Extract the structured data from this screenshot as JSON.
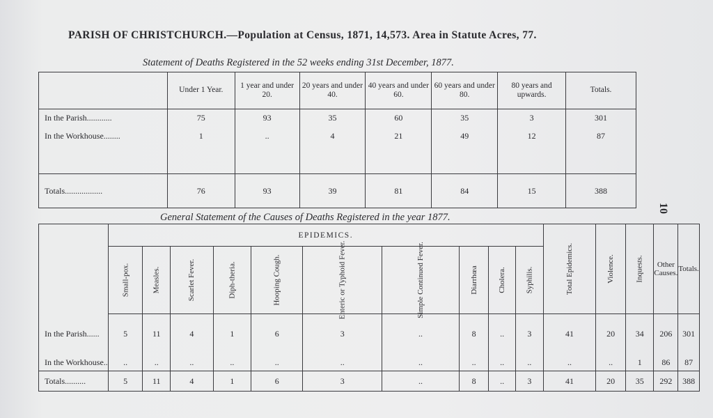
{
  "title": "PARISH OF CHRISTCHURCH.—Population at Census, 1871, 14,573. Area in Statute Acres, 77.",
  "page_number": "10",
  "deaths_table": {
    "caption": "Statement of Deaths Registered in the 52 weeks ending 31st December, 1877.",
    "columns": [
      "Under 1 Year.",
      "1 year and under 20.",
      "20 years and under 40.",
      "40 years and under 60.",
      "60 years and under 80.",
      "80 years and upwards.",
      "Totals."
    ],
    "rows": [
      {
        "label": "In the Parish............",
        "values": [
          "75",
          "93",
          "35",
          "60",
          "35",
          "3",
          "301"
        ]
      },
      {
        "label": "In the Workhouse........",
        "values": [
          "1",
          "..",
          "4",
          "21",
          "49",
          "12",
          "87"
        ]
      },
      {
        "label": "Totals..................",
        "values": [
          "76",
          "93",
          "39",
          "81",
          "84",
          "15",
          "388"
        ]
      }
    ]
  },
  "causes_table": {
    "caption": "General Statement of the Causes of Deaths Registered in the year 1877.",
    "group_header": "EPIDEMICS.",
    "epidemic_columns": [
      "Small-pox.",
      "Measles.",
      "Scarlet Fever.",
      "Diph-theria.",
      "Hooping Cough.",
      "Enteric or Typhoid Fever.",
      "Simple Continued Fever.",
      "Diarrhœa",
      "Cholera.",
      "Syphilis."
    ],
    "other_columns": [
      "Total Epidemics.",
      "Violence.",
      "Inquests."
    ],
    "other_causes": "Other Causes.",
    "totals": "Totals.",
    "rows": [
      {
        "label": "In the Parish......",
        "values": [
          "5",
          "11",
          "4",
          "1",
          "6",
          "3",
          "..",
          "8",
          "..",
          "3",
          "41",
          "20",
          "34",
          "206",
          "301"
        ]
      },
      {
        "label": "In the Workhouse..",
        "values": [
          "..",
          "..",
          "..",
          "..",
          "..",
          "..",
          "..",
          "..",
          "..",
          "..",
          "..",
          "..",
          "1",
          "86",
          "87"
        ]
      },
      {
        "label": "Totals..........",
        "values": [
          "5",
          "11",
          "4",
          "1",
          "6",
          "3",
          "..",
          "8",
          "..",
          "3",
          "41",
          "20",
          "35",
          "292",
          "388"
        ]
      }
    ]
  }
}
